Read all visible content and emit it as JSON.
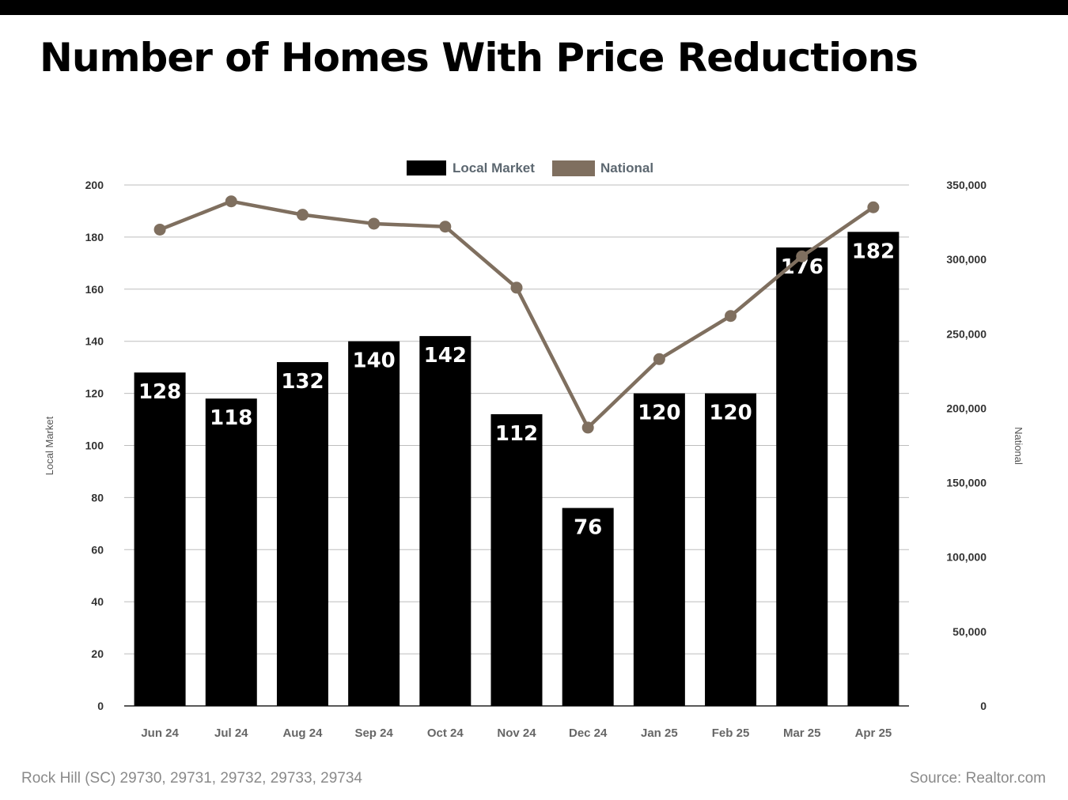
{
  "title": "Number of Homes With Price Reductions",
  "footer": {
    "location": "Rock Hill (SC) 29730, 29731, 29732, 29733, 29734",
    "source": "Source: Realtor.com"
  },
  "colors": {
    "bar": "#000000",
    "line": "#7f6f5f",
    "grid": "#bdbdbd",
    "legend_text": "#5c6770",
    "tick_text": "#333333"
  },
  "chart_data": {
    "type": "bar",
    "categories": [
      "Jun 24",
      "Jul 24",
      "Aug 24",
      "Sep 24",
      "Oct 24",
      "Nov 24",
      "Dec 24",
      "Jan 25",
      "Feb 25",
      "Mar 25",
      "Apr 25"
    ],
    "series": [
      {
        "name": "Local Market",
        "type": "bar",
        "axis": "left",
        "values": [
          128,
          118,
          132,
          140,
          142,
          112,
          76,
          120,
          120,
          176,
          182
        ],
        "labels": [
          "128",
          "118",
          "132",
          "140",
          "142",
          "112",
          "76",
          "120",
          "120",
          "176",
          "182"
        ]
      },
      {
        "name": "National",
        "type": "line",
        "axis": "right",
        "values": [
          320000,
          339000,
          330000,
          324000,
          322000,
          281000,
          187000,
          233000,
          262000,
          302000,
          335000
        ]
      }
    ],
    "ylabel": "Local Market",
    "y2label": "National",
    "ylim": [
      0,
      200
    ],
    "y2lim": [
      0,
      350000
    ],
    "yticks": [
      "0",
      "20",
      "40",
      "60",
      "80",
      "100",
      "120",
      "140",
      "160",
      "180",
      "200"
    ],
    "y2ticks": [
      "0",
      "50,000",
      "100,000",
      "150,000",
      "200,000",
      "250,000",
      "300,000",
      "350,000"
    ],
    "legend": "top-center",
    "grid": true
  }
}
